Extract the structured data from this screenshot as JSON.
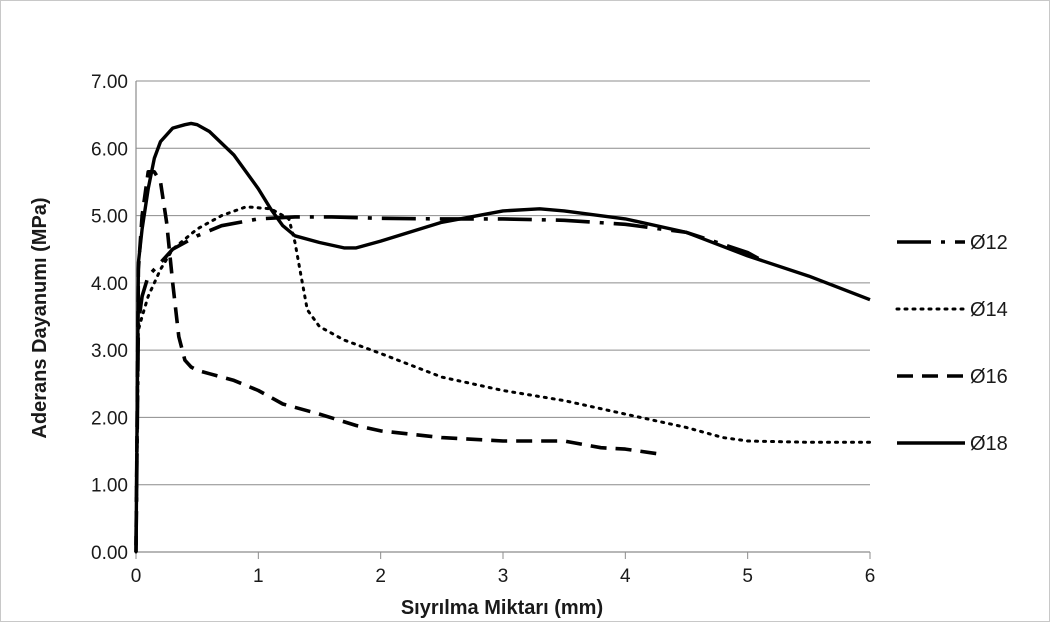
{
  "chart_data": {
    "type": "line",
    "title": "",
    "xlabel": "Sıyrılma Miktarı (mm)",
    "ylabel": "Aderans Dayanumı (MPa)",
    "xlim": [
      0,
      6
    ],
    "ylim": [
      0,
      7
    ],
    "x_ticks": [
      "0",
      "1",
      "2",
      "3",
      "4",
      "5",
      "6"
    ],
    "y_ticks": [
      "0.00",
      "1.00",
      "2.00",
      "3.00",
      "4.00",
      "5.00",
      "6.00",
      "7.00"
    ],
    "grid": "horizontal",
    "legend_position": "right",
    "series": [
      {
        "name": "Ø12",
        "style": "dash-dot",
        "x": [
          0,
          0.02,
          0.05,
          0.1,
          0.2,
          0.3,
          0.5,
          0.7,
          1.0,
          1.3,
          1.6,
          2.0,
          2.5,
          3.0,
          3.5,
          4.0,
          4.5,
          5.0,
          5.1
        ],
        "y": [
          0.1,
          3.4,
          3.8,
          4.1,
          4.3,
          4.5,
          4.7,
          4.85,
          4.95,
          4.98,
          4.98,
          4.96,
          4.95,
          4.95,
          4.93,
          4.87,
          4.75,
          4.45,
          4.35
        ]
      },
      {
        "name": "Ø14",
        "style": "dotted",
        "x": [
          0,
          0.02,
          0.05,
          0.1,
          0.2,
          0.3,
          0.5,
          0.7,
          0.9,
          1.1,
          1.25,
          1.3,
          1.35,
          1.4,
          1.5,
          1.7,
          2.0,
          2.5,
          3.0,
          3.5,
          4.0,
          4.5,
          4.8,
          5.0,
          5.5,
          6.0
        ],
        "y": [
          0.0,
          3.3,
          3.5,
          3.8,
          4.2,
          4.5,
          4.8,
          5.0,
          5.13,
          5.1,
          4.95,
          4.6,
          4.1,
          3.6,
          3.35,
          3.15,
          2.95,
          2.6,
          2.4,
          2.25,
          2.05,
          1.85,
          1.7,
          1.65,
          1.63,
          1.63
        ]
      },
      {
        "name": "Ø16",
        "style": "dashed",
        "x": [
          0,
          0.02,
          0.05,
          0.1,
          0.15,
          0.2,
          0.25,
          0.3,
          0.35,
          0.4,
          0.45,
          0.5,
          0.6,
          0.8,
          1.0,
          1.2,
          1.5,
          1.8,
          2.0,
          2.5,
          3.0,
          3.5,
          3.8,
          4.0,
          4.3
        ],
        "y": [
          0.0,
          4.2,
          5.0,
          5.65,
          5.65,
          5.5,
          4.9,
          4.0,
          3.2,
          2.85,
          2.75,
          2.7,
          2.65,
          2.55,
          2.4,
          2.2,
          2.05,
          1.88,
          1.8,
          1.7,
          1.65,
          1.65,
          1.55,
          1.53,
          1.45
        ]
      },
      {
        "name": "Ø18",
        "style": "solid",
        "x": [
          0,
          0.02,
          0.05,
          0.1,
          0.15,
          0.2,
          0.3,
          0.4,
          0.45,
          0.5,
          0.6,
          0.8,
          1.0,
          1.1,
          1.2,
          1.3,
          1.5,
          1.7,
          1.8,
          2.0,
          2.5,
          3.0,
          3.3,
          3.5,
          4.0,
          4.5,
          5.0,
          5.5,
          6.0
        ],
        "y": [
          0.0,
          4.3,
          4.8,
          5.4,
          5.85,
          6.1,
          6.3,
          6.35,
          6.37,
          6.35,
          6.25,
          5.9,
          5.4,
          5.1,
          4.85,
          4.7,
          4.6,
          4.52,
          4.52,
          4.62,
          4.9,
          5.07,
          5.1,
          5.07,
          4.95,
          4.75,
          4.4,
          4.1,
          3.75
        ]
      }
    ]
  }
}
